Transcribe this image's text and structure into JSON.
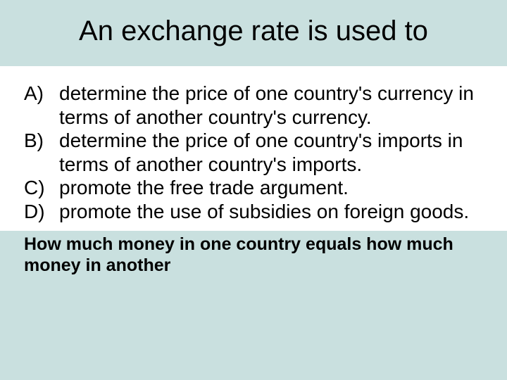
{
  "colors": {
    "background": "#c9e0df",
    "body_background": "#ffffff",
    "text": "#000000"
  },
  "typography": {
    "font_family": "Arial",
    "title_fontsize": 40,
    "option_fontsize": 28,
    "footer_fontsize": 25,
    "footer_weight": "bold"
  },
  "title": "An exchange rate is used to",
  "options": [
    {
      "letter": "A)",
      "text": "determine the price of one country's currency in terms of another country's currency."
    },
    {
      "letter": "B)",
      "text": "determine the price of one country's imports in terms of another country's imports."
    },
    {
      "letter": "C)",
      "text": "promote the free trade argument."
    },
    {
      "letter": "D)",
      "text": "promote the use of subsidies on foreign goods."
    }
  ],
  "footer": "How much money in one country equals how much money in another"
}
